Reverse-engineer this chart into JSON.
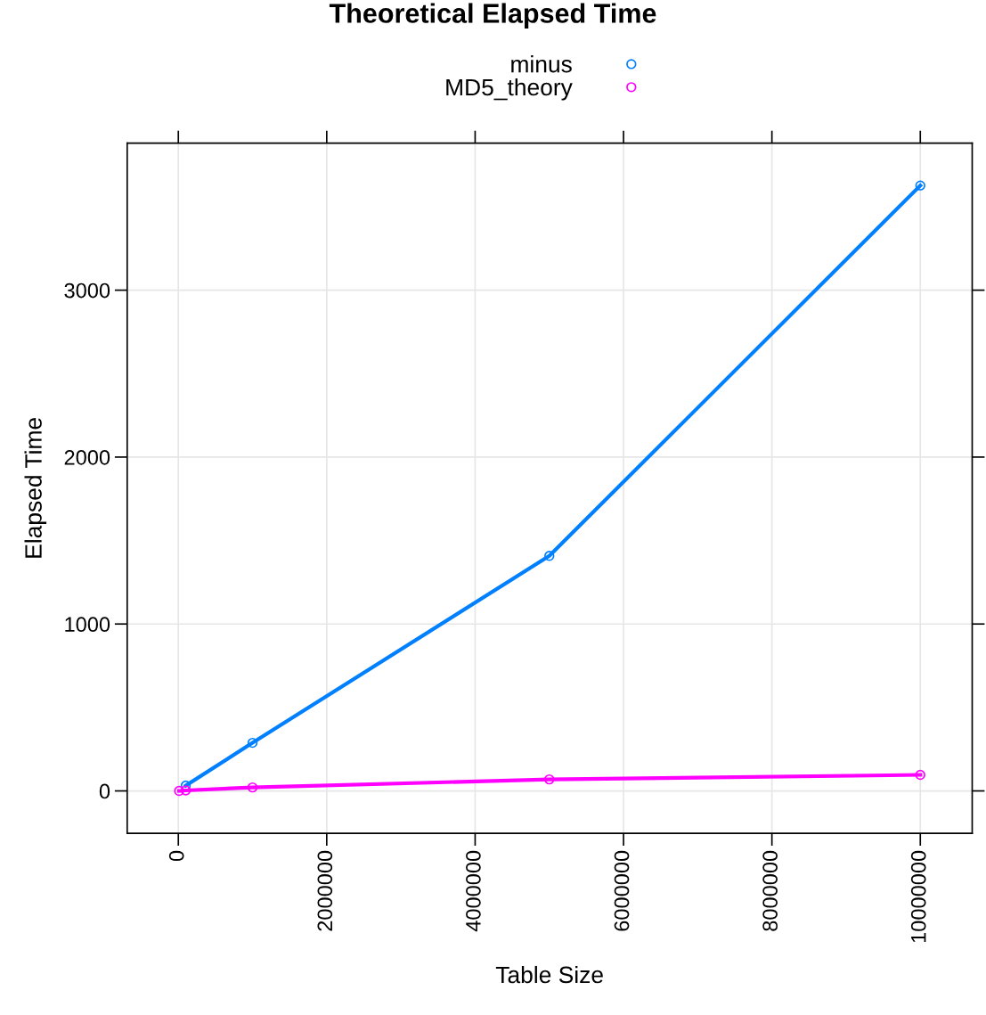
{
  "chart_data": {
    "type": "line",
    "title": "Theoretical Elapsed Time",
    "xlabel": "Table Size",
    "ylabel": "Elapsed Time",
    "x": [
      10000,
      100000,
      1000000,
      5000000,
      10000000
    ],
    "series": [
      {
        "name": "minus",
        "color": "#0080ff",
        "values": [
          null,
          32,
          288,
          1408,
          3627
        ]
      },
      {
        "name": "MD5_theory",
        "color": "#ff00ff",
        "values": [
          0,
          3,
          21,
          69,
          96
        ]
      }
    ],
    "xlim": [
      -689300,
      10699300
    ],
    "xticks": [
      0,
      2000000,
      4000000,
      6000000,
      8000000,
      10000000
    ],
    "ylim": [
      -254,
      3881
    ],
    "yticks": [
      0,
      1000,
      2000,
      3000
    ],
    "grid": true,
    "legend": "top",
    "marker": "circle",
    "line_style": "solid"
  }
}
